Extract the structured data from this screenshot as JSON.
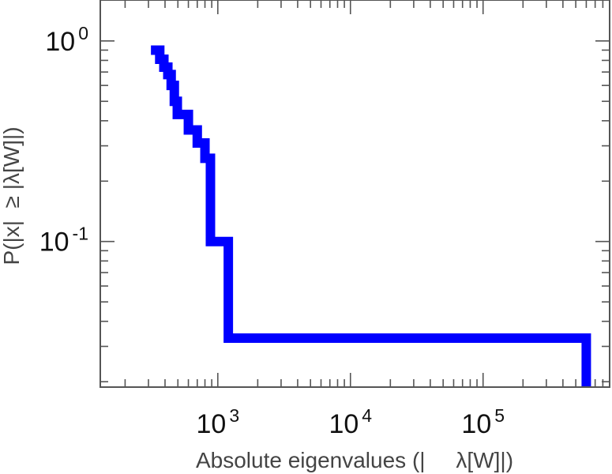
{
  "chart_data": {
    "type": "line",
    "title": "",
    "xlabel": "Absolute eigenvalues (|     λ[W]|)",
    "ylabel": "P(|x|  ≥ |λ[W]|)",
    "x_scale": "log",
    "y_scale": "log",
    "xlim": [
      130,
      900000
    ],
    "ylim": [
      0.0188,
      1.6
    ],
    "grid": false,
    "legend": "none",
    "line_color": "#0000ff",
    "x_ticks": [
      {
        "base": "10",
        "exp": "3",
        "value": 1000
      },
      {
        "base": "10",
        "exp": "4",
        "value": 10000
      },
      {
        "base": "10",
        "exp": "5",
        "value": 100000
      }
    ],
    "y_ticks": [
      {
        "base": "10",
        "exp": "0",
        "value": 1
      },
      {
        "base": "10",
        "exp": "-1",
        "value": 0.1
      }
    ],
    "series": [
      {
        "style": "step",
        "x": [
          340,
          340,
          365,
          365,
          392,
          392,
          420,
          420,
          445,
          445,
          470,
          470,
          495,
          495,
          600,
          600,
          700,
          700,
          800,
          800,
          880,
          880,
          1200,
          1200,
          600000,
          600000
        ],
        "y": [
          0.95,
          0.9,
          0.9,
          0.81,
          0.81,
          0.74,
          0.74,
          0.68,
          0.68,
          0.6,
          0.6,
          0.5,
          0.5,
          0.43,
          0.43,
          0.36,
          0.36,
          0.31,
          0.31,
          0.26,
          0.26,
          0.1,
          0.1,
          0.033,
          0.033,
          0.0188
        ]
      }
    ]
  }
}
